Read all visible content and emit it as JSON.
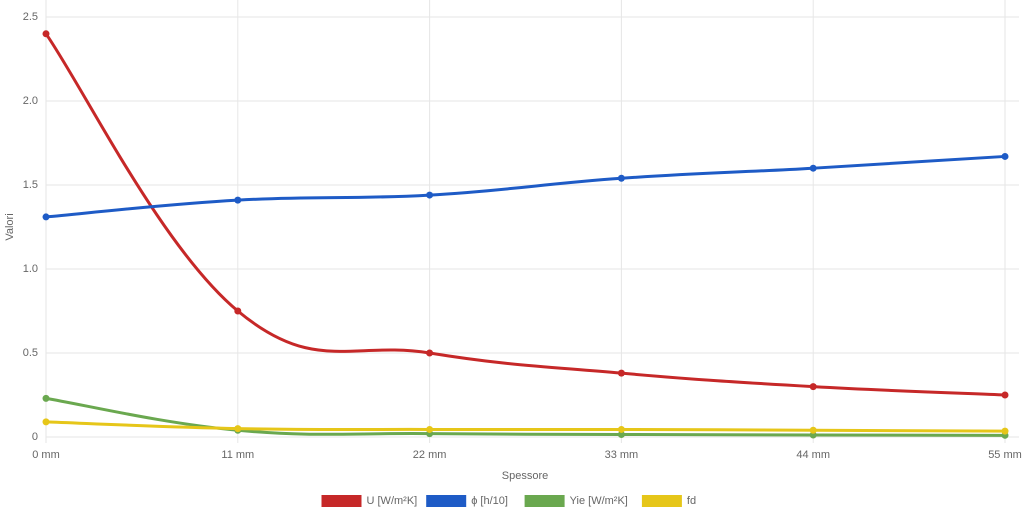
{
  "chart_data": {
    "type": "line",
    "x_label": "Spessore",
    "y_label": "Valori",
    "categories": [
      "0 mm",
      "11 mm",
      "22 mm",
      "33 mm",
      "44 mm",
      "55 mm"
    ],
    "series": [
      {
        "name": "U [W/m²K]",
        "color": "#c62828",
        "values": [
          2.4,
          0.75,
          0.5,
          0.38,
          0.3,
          0.25
        ]
      },
      {
        "name": "ϕ [h/10]",
        "color": "#1e5bc6",
        "values": [
          1.31,
          1.41,
          1.44,
          1.54,
          1.6,
          1.67
        ]
      },
      {
        "name": "Yie [W/m²K]",
        "color": "#6aa84f",
        "values": [
          0.23,
          0.04,
          0.02,
          0.015,
          0.012,
          0.01
        ]
      },
      {
        "name": "fd",
        "color": "#e6c619",
        "values": [
          0.09,
          0.05,
          0.045,
          0.045,
          0.04,
          0.035
        ]
      }
    ],
    "ylim": [
      0,
      2.5
    ],
    "yticks": [
      0,
      0.5,
      {
        "value": 1,
        "label": "1.0"
      },
      1.5,
      {
        "value": 2,
        "label": "2.0"
      },
      2.5
    ],
    "grid": true,
    "legend": "bottom"
  }
}
